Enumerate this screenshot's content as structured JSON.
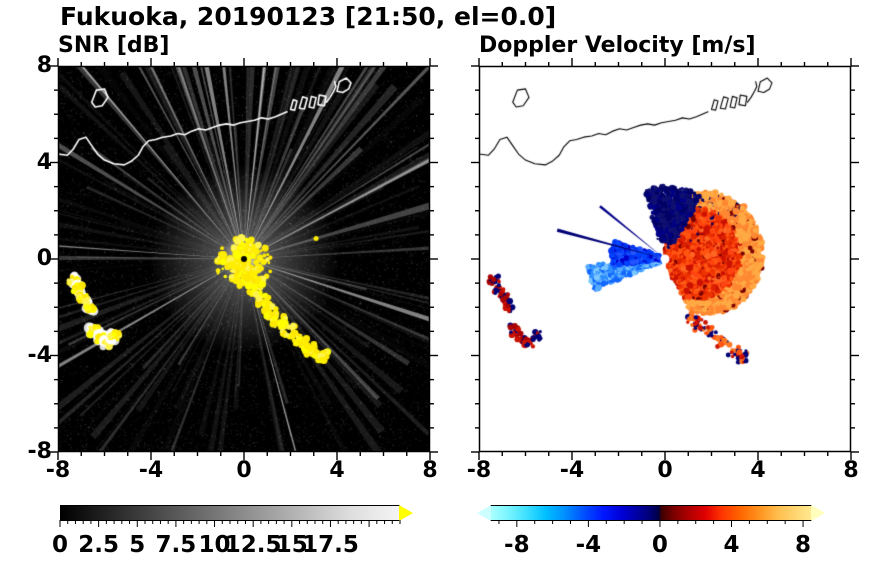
{
  "title": "Fukuoka, 20190123 [21:50, el=0.0]",
  "panels": {
    "snr": {
      "label": "SNR [dB]"
    },
    "doppler": {
      "label": "Doppler Velocity [m/s]"
    }
  },
  "axes": {
    "xlim": [
      -8,
      8
    ],
    "ylim": [
      -8,
      8
    ],
    "xtick_values": [
      -8,
      -4,
      0,
      4,
      8
    ],
    "xtick_labels": [
      "-8",
      "-4",
      "0",
      "4",
      "8"
    ],
    "ytick_values": [
      8,
      4,
      0,
      -4,
      -8
    ],
    "ytick_labels": [
      "8",
      "4",
      "0",
      "-4",
      "-8"
    ]
  },
  "colorbars": {
    "snr": {
      "tick_values": [
        0,
        2.5,
        5,
        7.5,
        10,
        12.5,
        15,
        17.5
      ],
      "tick_labels": [
        "0",
        "2.5",
        "5",
        "7.5",
        "10",
        "12.5",
        "15",
        "17.5"
      ],
      "scale_range": [
        0,
        22
      ],
      "minor_step": 0.5,
      "major_step": 2.5,
      "gradient": [
        [
          "0%",
          "#000000"
        ],
        [
          "85%",
          "#dcdcdc"
        ],
        [
          "100%",
          "#f5f5f5"
        ]
      ],
      "over_arrow_color": "#ffff00"
    },
    "doppler": {
      "tick_values": [
        -8,
        -4,
        0,
        4,
        8
      ],
      "tick_labels": [
        "-8",
        "-4",
        "0",
        "4",
        "8"
      ],
      "scale_range": [
        -9.5,
        8.5
      ],
      "minor_step": 1,
      "major_step": 4,
      "gradient": [
        [
          "0%",
          "#aaffff"
        ],
        [
          "5%",
          "#7df5ff"
        ],
        [
          "11%",
          "#3fe0ff"
        ],
        [
          "17%",
          "#00c0ff"
        ],
        [
          "23%",
          "#0090ff"
        ],
        [
          "29%",
          "#0050ff"
        ],
        [
          "35%",
          "#0018ff"
        ],
        [
          "41%",
          "#0000d6"
        ],
        [
          "46%",
          "#0000a0"
        ],
        [
          "50%",
          "#000070"
        ],
        [
          "52.5%",
          "#000042"
        ],
        [
          "53.2%",
          "#3c0000"
        ],
        [
          "57%",
          "#7a0000"
        ],
        [
          "62%",
          "#b00000"
        ],
        [
          "67%",
          "#e00000"
        ],
        [
          "72%",
          "#ff3300"
        ],
        [
          "78%",
          "#ff6600"
        ],
        [
          "84%",
          "#ff9420"
        ],
        [
          "90%",
          "#ffc050"
        ],
        [
          "100%",
          "#ffe990"
        ]
      ],
      "under_arrow_color": "#ccffff",
      "over_arrow_color": "#ffffbb"
    }
  },
  "coastline": {
    "segments": [
      [
        [
          -8,
          4.35
        ],
        [
          -7.6,
          4.3
        ],
        [
          -7.35,
          4.55
        ],
        [
          -7.1,
          4.95
        ],
        [
          -6.8,
          5.05
        ],
        [
          -6.55,
          4.7
        ],
        [
          -6.3,
          4.35
        ],
        [
          -6.0,
          4.1
        ],
        [
          -5.6,
          3.95
        ],
        [
          -5.15,
          3.9
        ],
        [
          -4.85,
          4.05
        ],
        [
          -4.55,
          4.3
        ],
        [
          -4.35,
          4.65
        ],
        [
          -4.1,
          4.9
        ],
        [
          -3.8,
          4.95
        ],
        [
          -3.5,
          5.05
        ],
        [
          -3.15,
          5.1
        ],
        [
          -2.85,
          5.2
        ],
        [
          -2.55,
          5.15
        ],
        [
          -2.25,
          5.3
        ],
        [
          -1.95,
          5.4
        ],
        [
          -1.65,
          5.35
        ],
        [
          -1.35,
          5.45
        ],
        [
          -1.05,
          5.55
        ],
        [
          -0.75,
          5.6
        ],
        [
          -0.45,
          5.55
        ],
        [
          -0.15,
          5.65
        ],
        [
          0.15,
          5.7
        ],
        [
          0.45,
          5.75
        ],
        [
          0.75,
          5.85
        ],
        [
          1.05,
          5.8
        ],
        [
          1.35,
          5.9
        ],
        [
          1.6,
          6.0
        ],
        [
          1.85,
          6.1
        ]
      ],
      [
        [
          3.55,
          6.5
        ],
        [
          3.7,
          6.7
        ],
        [
          3.85,
          6.95
        ],
        [
          3.95,
          7.15
        ],
        [
          3.9,
          7.35
        ]
      ]
    ],
    "piers": [
      [
        [
          2.0,
          6.2
        ],
        [
          2.12,
          6.6
        ],
        [
          2.28,
          6.55
        ],
        [
          2.18,
          6.17
        ]
      ],
      [
        [
          2.38,
          6.25
        ],
        [
          2.52,
          6.72
        ],
        [
          2.72,
          6.66
        ],
        [
          2.6,
          6.22
        ]
      ],
      [
        [
          2.8,
          6.3
        ],
        [
          2.9,
          6.74
        ],
        [
          3.1,
          6.68
        ],
        [
          3.0,
          6.26
        ]
      ],
      [
        [
          3.18,
          6.4
        ],
        [
          3.24,
          6.8
        ],
        [
          3.52,
          6.74
        ],
        [
          3.46,
          6.35
        ]
      ]
    ],
    "islands": [
      [
        [
          -6.55,
          6.5
        ],
        [
          -6.35,
          7.0
        ],
        [
          -6.0,
          7.05
        ],
        [
          -5.85,
          6.7
        ],
        [
          -6.1,
          6.35
        ],
        [
          -6.4,
          6.3
        ]
      ],
      [
        [
          4.0,
          6.95
        ],
        [
          4.25,
          6.9
        ],
        [
          4.5,
          7.05
        ],
        [
          4.6,
          7.3
        ],
        [
          4.4,
          7.5
        ],
        [
          4.1,
          7.35
        ]
      ]
    ]
  },
  "chart_data": [
    {
      "type": "heatmap",
      "panel": "snr",
      "title": "SNR [dB]",
      "xlim": [
        -8,
        8
      ],
      "ylim": [
        -8,
        8
      ],
      "xticks": [
        -8,
        -4,
        0,
        4,
        8
      ],
      "yticks": [
        -8,
        -4,
        0,
        4,
        8
      ],
      "colorbar_ticks": [
        0,
        2.5,
        5,
        7.5,
        10,
        12.5,
        15,
        17.5
      ],
      "colormap": "black to white grayscale, yellow over-range arrow",
      "background": "#000000",
      "features": {
        "radar_center": [
          0,
          0
        ],
        "beam_count": 130,
        "bright_beam_angles_deg": [
          176,
          96,
          63,
          285,
          210,
          342,
          130,
          28,
          101,
          84
        ],
        "center_echo": {
          "radius_units": 1.1,
          "colors": [
            "#ffff00",
            "#ffee00",
            "#fff44f",
            "#ffe800"
          ]
        },
        "clutter_chain_southeast": [
          [
            0.25,
            -0.75
          ],
          [
            0.5,
            -1.25
          ],
          [
            0.8,
            -1.75
          ],
          [
            1.1,
            -2.2
          ],
          [
            1.5,
            -2.6
          ],
          [
            1.9,
            -3.0
          ],
          [
            2.4,
            -3.4
          ],
          [
            2.9,
            -3.75
          ],
          [
            3.3,
            -4.05
          ]
        ],
        "clutter_arcs_west": [
          [
            -7.35,
            -0.85
          ],
          [
            -7.15,
            -1.25
          ],
          [
            -6.9,
            -1.6
          ],
          [
            -6.65,
            -1.95
          ],
          [
            -6.45,
            -2.95
          ],
          [
            -6.15,
            -3.25
          ],
          [
            -5.85,
            -3.45
          ],
          [
            -5.55,
            -3.2
          ]
        ],
        "isolated_echoes": [
          [
            3.1,
            0.85
          ]
        ]
      }
    },
    {
      "type": "heatmap",
      "panel": "doppler",
      "title": "Doppler Velocity [m/s]",
      "xlim": [
        -8,
        8
      ],
      "ylim": [
        -8,
        8
      ],
      "xticks": [
        -8,
        -4,
        0,
        4,
        8
      ],
      "yticks": [
        -8,
        -4,
        0,
        4,
        8
      ],
      "colorbar_ticks": [
        -8,
        -4,
        0,
        4,
        8
      ],
      "colormap": "cyan-blue-dark navy for negative, dark red-red-orange-pale yellow for positive",
      "background": "#ffffff",
      "features": {
        "radar_center": [
          0,
          0
        ],
        "center_hole_radius_units": 0.2,
        "positive_sector": {
          "angle_range_deg": [
            -62,
            82
          ],
          "peak_radius": 4.2,
          "colors": [
            "#ff4411",
            "#ee3300",
            "#ff5511",
            "#dd2200",
            "#cc1100",
            "#ff6622"
          ],
          "edge_colors": [
            "#ff8833",
            "#ffaa44"
          ]
        },
        "north_negative_clump": {
          "angle_range_deg": [
            60,
            106
          ],
          "radius_range": [
            0.8,
            3.1
          ],
          "colors": [
            "#000066",
            "#000088",
            "#101070"
          ]
        },
        "light_blue_wedge": {
          "angle_range_deg": [
            186,
            203
          ],
          "radius_range": [
            0.3,
            3.3
          ],
          "colors": [
            "#55aaff",
            "#2f8fff",
            "#7cc8ff",
            "#1166ff"
          ]
        },
        "blue_wedge": {
          "angle_range_deg": [
            161,
            186
          ],
          "radius_range": [
            0.3,
            2.3
          ],
          "colors": [
            "#0033ee",
            "#0044ff",
            "#2255ff",
            "#0000cc"
          ]
        },
        "thin_beams": [
          {
            "angle_deg": 165,
            "length": 4.8,
            "color": "#000077"
          },
          {
            "angle_deg": 141,
            "length": 3.6,
            "color": "#000088"
          }
        ],
        "sw_patches": {
          "points": [
            [
              -7.35,
              -0.85
            ],
            [
              -7.15,
              -1.25
            ],
            [
              -6.9,
              -1.6
            ],
            [
              -6.65,
              -1.95
            ],
            [
              -6.45,
              -2.95
            ],
            [
              -6.15,
              -3.25
            ],
            [
              -5.85,
              -3.45
            ],
            [
              -5.55,
              -3.2
            ]
          ],
          "colors": [
            "#aa0000",
            "#000077",
            "#cc1100"
          ]
        },
        "se_patches": {
          "points": [
            [
              1.5,
              -2.7
            ],
            [
              1.95,
              -3.05
            ],
            [
              2.45,
              -3.45
            ],
            [
              2.95,
              -3.8
            ],
            [
              3.3,
              -4.05
            ],
            [
              1.15,
              -2.5
            ]
          ],
          "colors": [
            "#ff5511",
            "#cc1100",
            "#000077",
            "#ff7722"
          ]
        }
      }
    }
  ]
}
